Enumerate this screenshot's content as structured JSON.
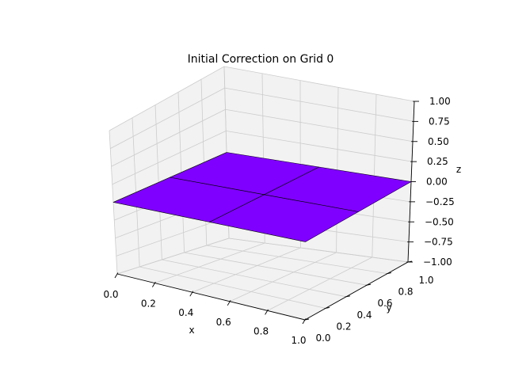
{
  "chart_data": {
    "type": "surface",
    "title": "Initial Correction on Grid 0",
    "xlabel": "x",
    "ylabel": "y",
    "zlabel": "z",
    "xlim": [
      0.0,
      1.0
    ],
    "ylim": [
      0.0,
      1.0
    ],
    "zlim": [
      -1.0,
      1.0
    ],
    "x_ticks": [
      "0.0",
      "0.2",
      "0.4",
      "0.6",
      "0.8",
      "1.0"
    ],
    "y_ticks": [
      "0.0",
      "0.2",
      "0.4",
      "0.6",
      "0.8",
      "1.0"
    ],
    "z_ticks": [
      "−1.00",
      "−0.75",
      "−0.50",
      "−0.25",
      "0.00",
      "0.25",
      "0.50",
      "0.75",
      "1.00"
    ],
    "grid": true,
    "surface": {
      "x": [
        0.0,
        0.5,
        1.0
      ],
      "y": [
        0.0,
        0.5,
        1.0
      ],
      "z": [
        [
          0,
          0,
          0
        ],
        [
          0,
          0,
          0
        ],
        [
          0,
          0,
          0
        ]
      ],
      "color": "#7f00ff"
    },
    "colors": {
      "pane": "#f2f2f2",
      "grid": "#cccccc",
      "edge": "#000000"
    }
  }
}
